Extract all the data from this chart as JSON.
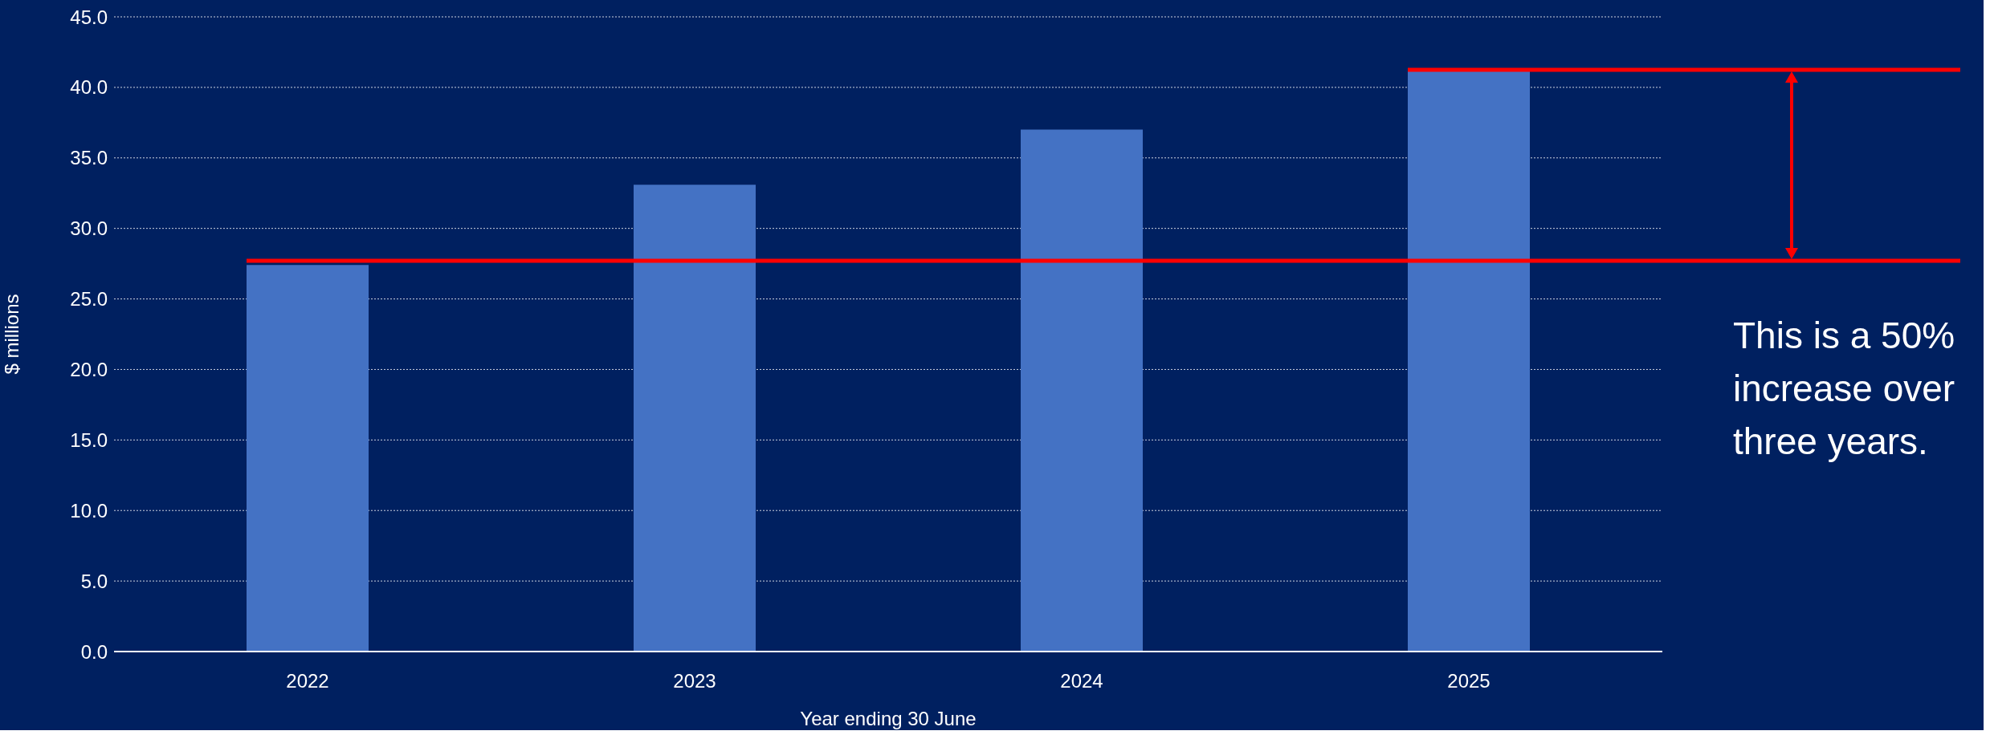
{
  "chart_data": {
    "type": "bar",
    "xlabel": "Year ending 30 June",
    "ylabel": "$ millions",
    "categories": [
      "2022",
      "2023",
      "2024",
      "2025"
    ],
    "values": [
      27.4,
      33.1,
      37.0,
      41.2
    ],
    "color": "#4472c4",
    "ylim": [
      0,
      45
    ],
    "yticks": [
      {
        "value": 0,
        "label": "0.0"
      },
      {
        "value": 5,
        "label": "5.0"
      },
      {
        "value": 10,
        "label": "10.0"
      },
      {
        "value": 15,
        "label": "15.0"
      },
      {
        "value": 20,
        "label": "20.0"
      },
      {
        "value": 25,
        "label": "25.0"
      },
      {
        "value": 30,
        "label": "30.0"
      },
      {
        "value": 35,
        "label": "35.0"
      },
      {
        "value": 40,
        "label": "40.0"
      },
      {
        "value": 45,
        "label": "45.0"
      }
    ],
    "grid": "y",
    "ref_lines": [
      {
        "axis": "y",
        "value": 27.7,
        "color": "#ff0000"
      },
      {
        "axis": "y",
        "value": 41.25,
        "color": "#ff0000"
      }
    ],
    "annotations": [
      "This is a 50% increase over three years."
    ]
  }
}
